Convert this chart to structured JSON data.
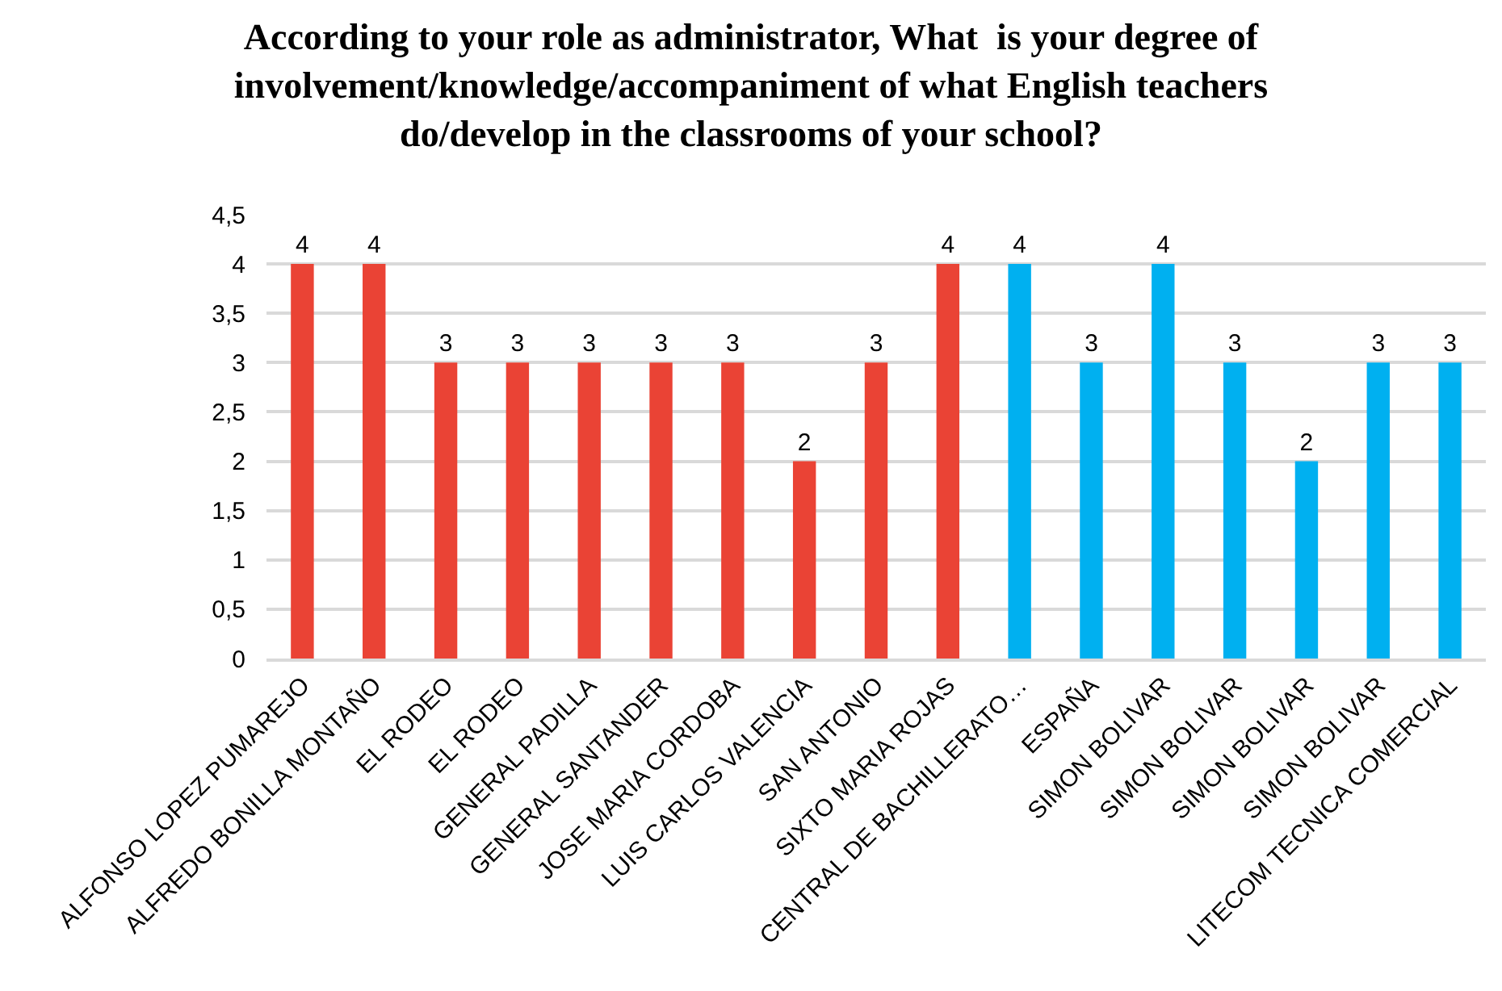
{
  "chart_data": {
    "type": "bar",
    "title": "According to your role as administrator, What  is your degree of\ninvolvement/knowledge/accompaniment of what English teachers\ndo/develop in the classrooms of your school?",
    "categories": [
      "ALFONSO LOPEZ PUMAREJO",
      "ALFREDO BONILLA MONTAÑO",
      "EL RODEO",
      "EL RODEO",
      "GENERAL PADILLA",
      "GENERAL SANTANDER",
      "JOSE MARIA CORDOBA",
      "LUIS CARLOS VALENCIA",
      "SAN ANTONIO",
      "SIXTO MARIA ROJAS",
      "CENTRAL DE BACHILLERATO…",
      "ESPAÑA",
      "SIMON BOLIVAR",
      "SIMON BOLIVAR",
      "SIMON BOLIVAR",
      "SIMON BOLIVAR",
      "LITECOM TECNICA COMERCIAL"
    ],
    "values": [
      4,
      4,
      3,
      3,
      3,
      3,
      3,
      2,
      3,
      4,
      4,
      3,
      4,
      3,
      2,
      3,
      3
    ],
    "colors": [
      "#ea4335",
      "#ea4335",
      "#ea4335",
      "#ea4335",
      "#ea4335",
      "#ea4335",
      "#ea4335",
      "#ea4335",
      "#ea4335",
      "#ea4335",
      "#00b0f0",
      "#00b0f0",
      "#00b0f0",
      "#00b0f0",
      "#00b0f0",
      "#00b0f0",
      "#00b0f0"
    ],
    "ylim": [
      0,
      4.5
    ],
    "yticks": [
      0,
      {
        "value": 0.5,
        "label": "0,5"
      },
      1,
      {
        "value": 1.5,
        "label": "1,5"
      },
      2,
      {
        "value": 2.5,
        "label": "2,5"
      },
      3,
      {
        "value": 3.5,
        "label": "3,5"
      },
      4,
      {
        "value": 4.5,
        "label": "4,5"
      }
    ],
    "grid": "y",
    "legend": false,
    "data_labels": true
  }
}
